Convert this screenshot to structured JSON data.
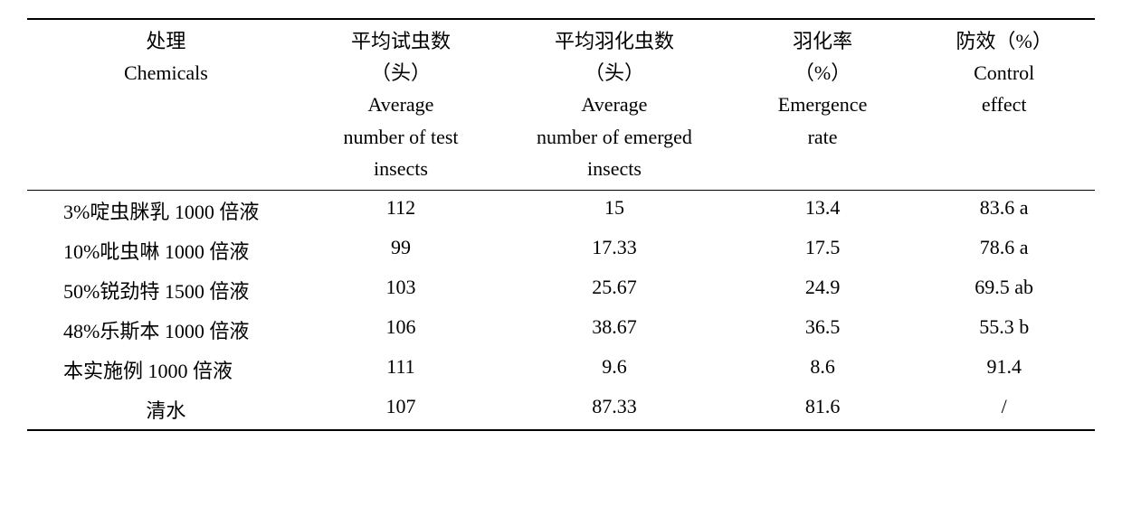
{
  "table": {
    "background_color": "#ffffff",
    "text_color": "#000000",
    "border_color": "#000000",
    "font_size": 22,
    "columns": [
      {
        "lines": [
          "处理",
          "Chemicals"
        ],
        "align": "center"
      },
      {
        "lines": [
          "平均试虫数",
          "（头）",
          "Average",
          "number of test",
          "insects"
        ],
        "align": "center"
      },
      {
        "lines": [
          "平均羽化虫数",
          "（头）",
          "Average",
          "number of emerged",
          "insects"
        ],
        "align": "center"
      },
      {
        "lines": [
          "羽化率",
          "（%）",
          "Emergence",
          "rate"
        ],
        "align": "center"
      },
      {
        "lines": [
          "防效（%）",
          "Control",
          "effect"
        ],
        "align": "center"
      }
    ],
    "rows": [
      [
        "3%啶虫脒乳 1000 倍液",
        "112",
        "15",
        "13.4",
        "83.6 a"
      ],
      [
        "10%吡虫啉 1000 倍液",
        "99",
        "17.33",
        "17.5",
        "78.6 a"
      ],
      [
        "50%锐劲特 1500 倍液",
        "103",
        "25.67",
        "24.9",
        "69.5 ab"
      ],
      [
        "48%乐斯本 1000 倍液",
        "106",
        "38.67",
        "36.5",
        "55.3 b"
      ],
      [
        "本实施例 1000 倍液",
        "111",
        "9.6",
        "8.6",
        "91.4"
      ],
      [
        "清水",
        "107",
        "87.33",
        "81.6",
        "/"
      ]
    ],
    "col_widths": [
      "26%",
      "18%",
      "22%",
      "17%",
      "17%"
    ]
  }
}
